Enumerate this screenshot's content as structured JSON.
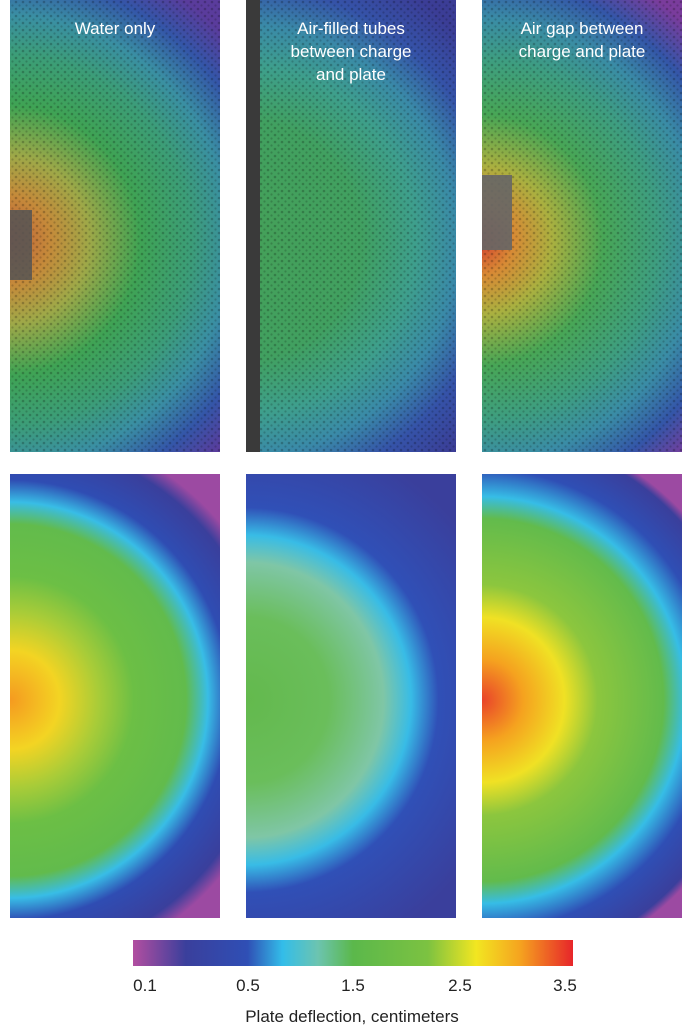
{
  "panels": [
    {
      "title": [
        "Water only"
      ]
    },
    {
      "title": [
        "Air-filled tubes",
        "between charge",
        "and plate"
      ]
    },
    {
      "title": [
        "Air gap between",
        "charge and plate"
      ]
    }
  ],
  "colorbar": {
    "ticks": [
      0.1,
      0.5,
      1.5,
      2.5,
      3.5
    ],
    "label": "Plate deflection, centimeters"
  }
}
